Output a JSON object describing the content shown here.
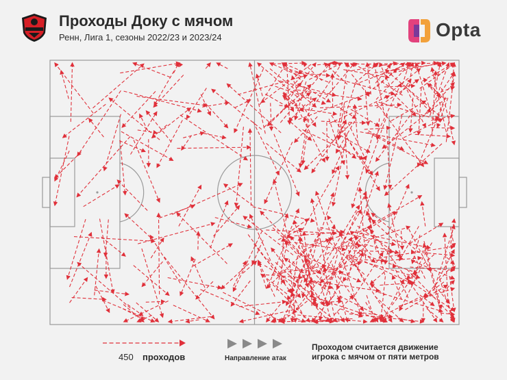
{
  "header": {
    "title": "Проходы Доку с мячом",
    "subtitle": "Ренн, Лига 1, сезоны 2022/23 и 2023/24",
    "opta_label": "Opta",
    "club_logo_icon": "stade-rennais-crest-icon"
  },
  "legend": {
    "count": "450",
    "count_label": "проходов",
    "direction_label": "Направление атак",
    "note_line1": "Проходом считается движение",
    "note_line2": "игрока с мячом от пяти метров"
  },
  "colors": {
    "arrow": "#e0303a",
    "pitch_line": "#9a9a9a",
    "background": "#f2f2f2",
    "direction_icon": "#8a8a8a"
  }
}
